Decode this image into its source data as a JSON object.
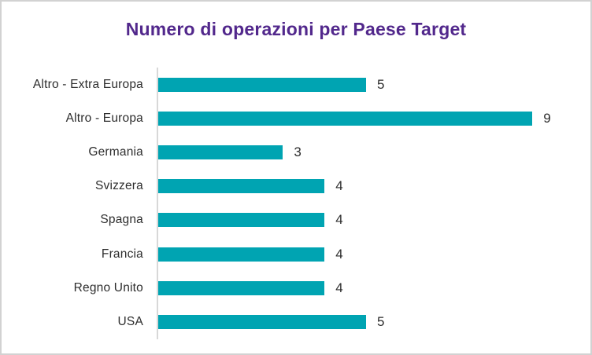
{
  "chart_data": {
    "type": "bar",
    "orientation": "horizontal",
    "title": "Numero di operazioni per Paese Target",
    "categories": [
      "Altro - Extra Europa",
      "Altro - Europa",
      "Germania",
      "Svizzera",
      "Spagna",
      "Francia",
      "Regno Unito",
      "USA"
    ],
    "values": [
      5,
      9,
      3,
      4,
      4,
      4,
      4,
      5
    ],
    "xlim": [
      0,
      10.3
    ],
    "grid": false,
    "legend": false,
    "value_labels_shown": true,
    "bar_color": "#00a4b2",
    "title_color": "#52288c",
    "text_color": "#2d2d2d",
    "axis_line_color": "#d8d8d8",
    "border_color": "#d2d2d2"
  }
}
